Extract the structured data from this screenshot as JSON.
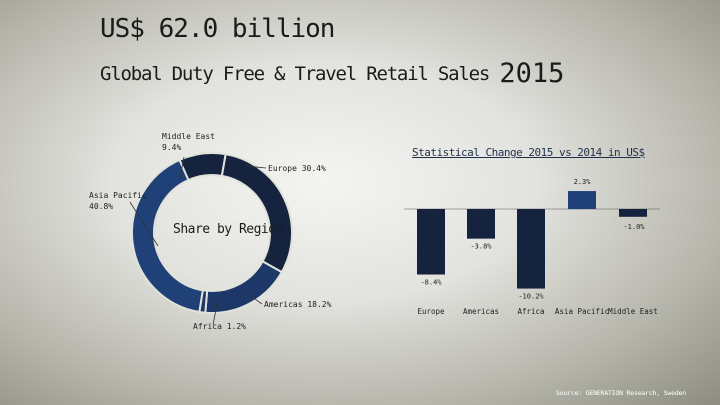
{
  "header": {
    "title": "US$ 62.0 billion",
    "subtitle": "Global Duty Free & Travel Retail Sales",
    "year": "2015"
  },
  "footer": {
    "source": "Source: GENERATION Research, Sweden"
  },
  "colors": {
    "dark_navy": "#15233e",
    "mid_blue": "#1d3868",
    "bright_blue": "#1f4178",
    "slice_gap": "#e2e2dc"
  },
  "chart_data": [
    {
      "type": "pie",
      "variant": "donut",
      "center_label": "Share by Region",
      "slices": [
        {
          "label": "Middle East",
          "value": 9.4,
          "text": "Middle East 9.4%"
        },
        {
          "label": "Europe",
          "value": 30.4,
          "text": "Europe 30.4%"
        },
        {
          "label": "Americas",
          "value": 18.2,
          "text": "Americas 18.2%"
        },
        {
          "label": "Africa",
          "value": 1.2,
          "text": "Africa 1.2%"
        },
        {
          "label": "Asia Pacific",
          "value": 40.8,
          "text": "Asia Pacific 40.8%"
        }
      ]
    },
    {
      "type": "bar",
      "title": "Statistical Change 2015 vs 2014 in US$",
      "categories": [
        "Europe",
        "Americas",
        "Africa",
        "Asia Pacific",
        "Middle East"
      ],
      "values": [
        -8.4,
        -3.8,
        -10.2,
        2.3,
        -1.0
      ],
      "value_labels": [
        "-8.4%",
        "-3.8%",
        "-10.2%",
        "2.3%",
        "-1.0%"
      ],
      "ylim": [
        -12,
        4
      ]
    }
  ]
}
